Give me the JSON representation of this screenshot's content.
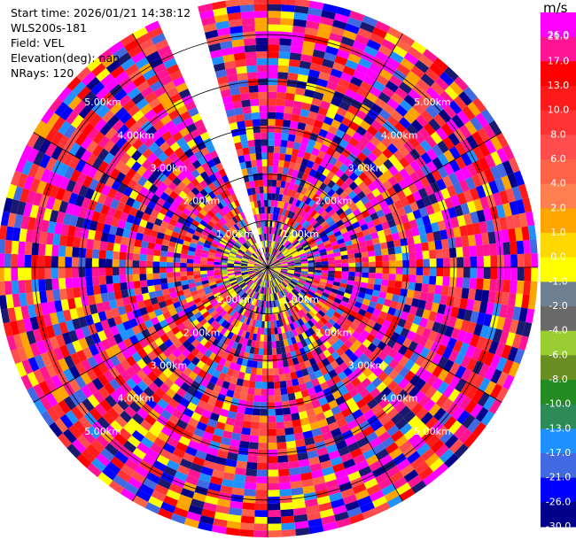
{
  "info": {
    "start_time": "Start time: 2026/01/21 14:38:12",
    "instrument": "WLS200s-181",
    "field": "Field: VEL",
    "elevation": "Elevation(deg): nan",
    "nrays": "NRays: 120"
  },
  "chart_data": {
    "type": "heatmap",
    "projection": "polar",
    "field": "VEL",
    "units": "m/s",
    "nrays": 120,
    "range_rings_km": [
      1.0,
      2.0,
      3.0,
      4.0,
      5.0
    ],
    "range_labels": [
      "1.00km",
      "2.00km",
      "3.00km",
      "4.00km",
      "5.00km"
    ],
    "max_range_km": 5.8,
    "missing_sector_deg": [
      336,
      346
    ],
    "colorbar": {
      "label": "m/s",
      "ticks": [
        "26.0",
        "21.0",
        "17.0",
        "13.0",
        "10.0",
        "8.0",
        "6.0",
        "4.0",
        "2.0",
        "1.0",
        "0.0",
        "-1.0",
        "-2.0",
        "-4.0",
        "-6.0",
        "-8.0",
        "-10.0",
        "-13.0",
        "-17.0",
        "-21.0",
        "-26.0",
        "-30.0"
      ],
      "colors": [
        "#ff00ff",
        "#ff1493",
        "#ff0000",
        "#ff1a1a",
        "#ff3333",
        "#ff4d4d",
        "#ff6347",
        "#ff7f50",
        "#ffa500",
        "#ffd700",
        "#ffff00",
        "#708090",
        "#696969",
        "#9acd32",
        "#6b8e23",
        "#228b22",
        "#2e8b57",
        "#1e90ff",
        "#4169e1",
        "#0000ff",
        "#00008b",
        "#191970"
      ]
    }
  }
}
